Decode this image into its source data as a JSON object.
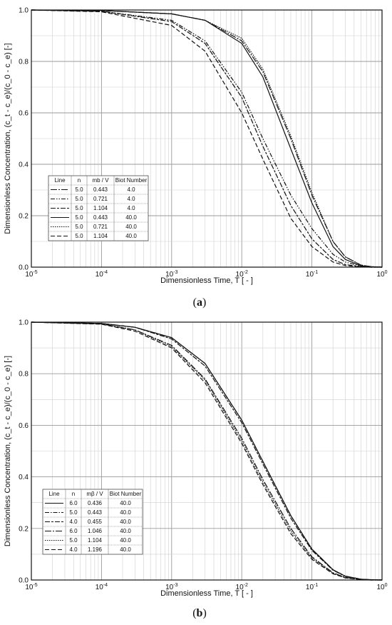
{
  "chart_data": [
    {
      "type": "line",
      "panel": "a",
      "caption": "a",
      "xlabel": "Dimensionless Time, T [ - ]",
      "ylabel": "Dimensionless Concentration, (c_t - c_e)/(c_0 - c_e) [-]",
      "xscale": "log",
      "xlim": [
        1e-05,
        1
      ],
      "ylim": [
        0,
        1
      ],
      "grid": true,
      "legend_position": "lower-left",
      "xticks": [
        "10-5",
        "10-4",
        "10-3",
        "10-2",
        "10-1",
        "100"
      ],
      "yticks": [
        "0.0",
        "0.2",
        "0.4",
        "0.6",
        "0.8",
        "1.0"
      ],
      "legend_header": [
        "Line",
        "n",
        "mb / V",
        "Biot Number"
      ],
      "legend_rows": [
        [
          "5.0",
          "0.443",
          "4.0"
        ],
        [
          "5.0",
          "0.721",
          "4.0"
        ],
        [
          "5.0",
          "1.104",
          "4.0"
        ],
        [
          "5.0",
          "0.443",
          "40.0"
        ],
        [
          "5.0",
          "0.721",
          "40.0"
        ],
        [
          "5.0",
          "1.104",
          "40.0"
        ]
      ],
      "series": [
        {
          "dash": "9 2 2 2",
          "x": [
            1e-05,
            0.0001,
            0.001,
            0.003,
            0.01,
            0.02,
            0.05,
            0.1,
            0.2,
            0.3,
            0.5,
            0.7,
            1
          ],
          "y": [
            1.0,
            0.998,
            0.985,
            0.96,
            0.88,
            0.76,
            0.5,
            0.28,
            0.1,
            0.04,
            0.008,
            0.002,
            0.0
          ]
        },
        {
          "dash": "6 2 1.5 2 1.5 2",
          "x": [
            1e-05,
            0.0001,
            0.001,
            0.003,
            0.01,
            0.02,
            0.05,
            0.1,
            0.2,
            0.3,
            0.5,
            0.7,
            1
          ],
          "y": [
            1.0,
            0.995,
            0.96,
            0.88,
            0.68,
            0.5,
            0.28,
            0.15,
            0.05,
            0.02,
            0.004,
            0.001,
            0.0
          ]
        },
        {
          "dash": "7 2 3 2",
          "x": [
            1e-05,
            0.0001,
            0.001,
            0.003,
            0.01,
            0.02,
            0.05,
            0.1,
            0.2,
            0.3,
            0.5,
            0.7,
            1
          ],
          "y": [
            1.0,
            0.995,
            0.955,
            0.87,
            0.66,
            0.47,
            0.24,
            0.11,
            0.03,
            0.01,
            0.002,
            0.0,
            0.0
          ]
        },
        {
          "dash": "",
          "x": [
            1e-05,
            0.0001,
            0.001,
            0.003,
            0.01,
            0.02,
            0.05,
            0.1,
            0.2,
            0.3,
            0.5,
            0.7,
            1
          ],
          "y": [
            1.0,
            0.998,
            0.985,
            0.96,
            0.87,
            0.74,
            0.46,
            0.25,
            0.08,
            0.03,
            0.005,
            0.001,
            0.0
          ]
        },
        {
          "dash": "1.5 1.5",
          "x": [
            1e-05,
            0.0001,
            0.001,
            0.003,
            0.01,
            0.02,
            0.05,
            0.1,
            0.2,
            0.3,
            0.5,
            0.7,
            1
          ],
          "y": [
            1.0,
            0.998,
            0.985,
            0.96,
            0.89,
            0.77,
            0.51,
            0.29,
            0.1,
            0.04,
            0.008,
            0.002,
            0.0
          ]
        },
        {
          "dash": "6 3",
          "x": [
            1e-05,
            0.0001,
            0.001,
            0.003,
            0.01,
            0.02,
            0.05,
            0.1,
            0.2,
            0.3,
            0.5,
            0.7,
            1
          ],
          "y": [
            1.0,
            0.993,
            0.94,
            0.84,
            0.6,
            0.42,
            0.19,
            0.08,
            0.02,
            0.006,
            0.001,
            0.0,
            0.0
          ]
        }
      ]
    },
    {
      "type": "line",
      "panel": "b",
      "caption": "b",
      "xlabel": "Dimensionless Time, T [ - ]",
      "ylabel": "Dimensionless Concentration, (c_t - c_e)/(c_0 - c_e) [-]",
      "xscale": "log",
      "xlim": [
        1e-05,
        1
      ],
      "ylim": [
        0,
        1
      ],
      "grid": true,
      "legend_position": "lower-left",
      "xticks": [
        "10-5",
        "10-4",
        "10-3",
        "10-2",
        "10-1",
        "100"
      ],
      "yticks": [
        "0.0",
        "0.2",
        "0.4",
        "0.6",
        "0.8",
        "1.0"
      ],
      "legend_header": [
        "Line",
        "n",
        "mβ / V",
        "Biot Number"
      ],
      "legend_rows": [
        [
          "6.0",
          "0.436",
          "40.0"
        ],
        [
          "5.0",
          "0.443",
          "40.0"
        ],
        [
          "4.0",
          "0.455",
          "40.0"
        ],
        [
          "6.0",
          "1.046",
          "40.0"
        ],
        [
          "5.0",
          "1.104",
          "40.0"
        ],
        [
          "4.0",
          "1.196",
          "40.0"
        ]
      ],
      "series": [
        {
          "dash": "",
          "x": [
            1e-05,
            0.0001,
            0.0003,
            0.001,
            0.003,
            0.01,
            0.02,
            0.05,
            0.1,
            0.2,
            0.3,
            0.5,
            0.7,
            1
          ],
          "y": [
            1.0,
            0.995,
            0.98,
            0.94,
            0.84,
            0.62,
            0.46,
            0.25,
            0.12,
            0.04,
            0.015,
            0.003,
            0.001,
            0.0
          ]
        },
        {
          "dash": "6 2 1.5 2",
          "x": [
            1e-05,
            0.0001,
            0.0003,
            0.001,
            0.003,
            0.01,
            0.02,
            0.05,
            0.1,
            0.2,
            0.3,
            0.5,
            0.7,
            1
          ],
          "y": [
            1.0,
            0.995,
            0.98,
            0.94,
            0.84,
            0.62,
            0.46,
            0.25,
            0.12,
            0.04,
            0.015,
            0.003,
            0.001,
            0.0
          ]
        },
        {
          "dash": "7 2 3 2",
          "x": [
            1e-05,
            0.0001,
            0.0003,
            0.001,
            0.003,
            0.01,
            0.02,
            0.05,
            0.1,
            0.2,
            0.3,
            0.5,
            0.7,
            1
          ],
          "y": [
            1.0,
            0.995,
            0.98,
            0.935,
            0.83,
            0.61,
            0.45,
            0.24,
            0.115,
            0.038,
            0.014,
            0.003,
            0.001,
            0.0
          ]
        },
        {
          "dash": "9 2 2 2",
          "x": [
            1e-05,
            0.0001,
            0.0003,
            0.001,
            0.003,
            0.01,
            0.02,
            0.05,
            0.1,
            0.2,
            0.3,
            0.5,
            0.7,
            1
          ],
          "y": [
            1.0,
            0.993,
            0.97,
            0.91,
            0.78,
            0.55,
            0.39,
            0.2,
            0.09,
            0.028,
            0.01,
            0.002,
            0.0,
            0.0
          ]
        },
        {
          "dash": "1.5 1.5",
          "x": [
            1e-05,
            0.0001,
            0.0003,
            0.001,
            0.003,
            0.01,
            0.02,
            0.05,
            0.1,
            0.2,
            0.3,
            0.5,
            0.7,
            1
          ],
          "y": [
            1.0,
            0.993,
            0.97,
            0.905,
            0.775,
            0.54,
            0.38,
            0.19,
            0.085,
            0.026,
            0.009,
            0.002,
            0.0,
            0.0
          ]
        },
        {
          "dash": "6 3",
          "x": [
            1e-05,
            0.0001,
            0.0003,
            0.001,
            0.003,
            0.01,
            0.02,
            0.05,
            0.1,
            0.2,
            0.3,
            0.5,
            0.7,
            1
          ],
          "y": [
            1.0,
            0.992,
            0.965,
            0.9,
            0.765,
            0.53,
            0.37,
            0.18,
            0.08,
            0.024,
            0.008,
            0.002,
            0.0,
            0.0
          ]
        }
      ]
    }
  ]
}
